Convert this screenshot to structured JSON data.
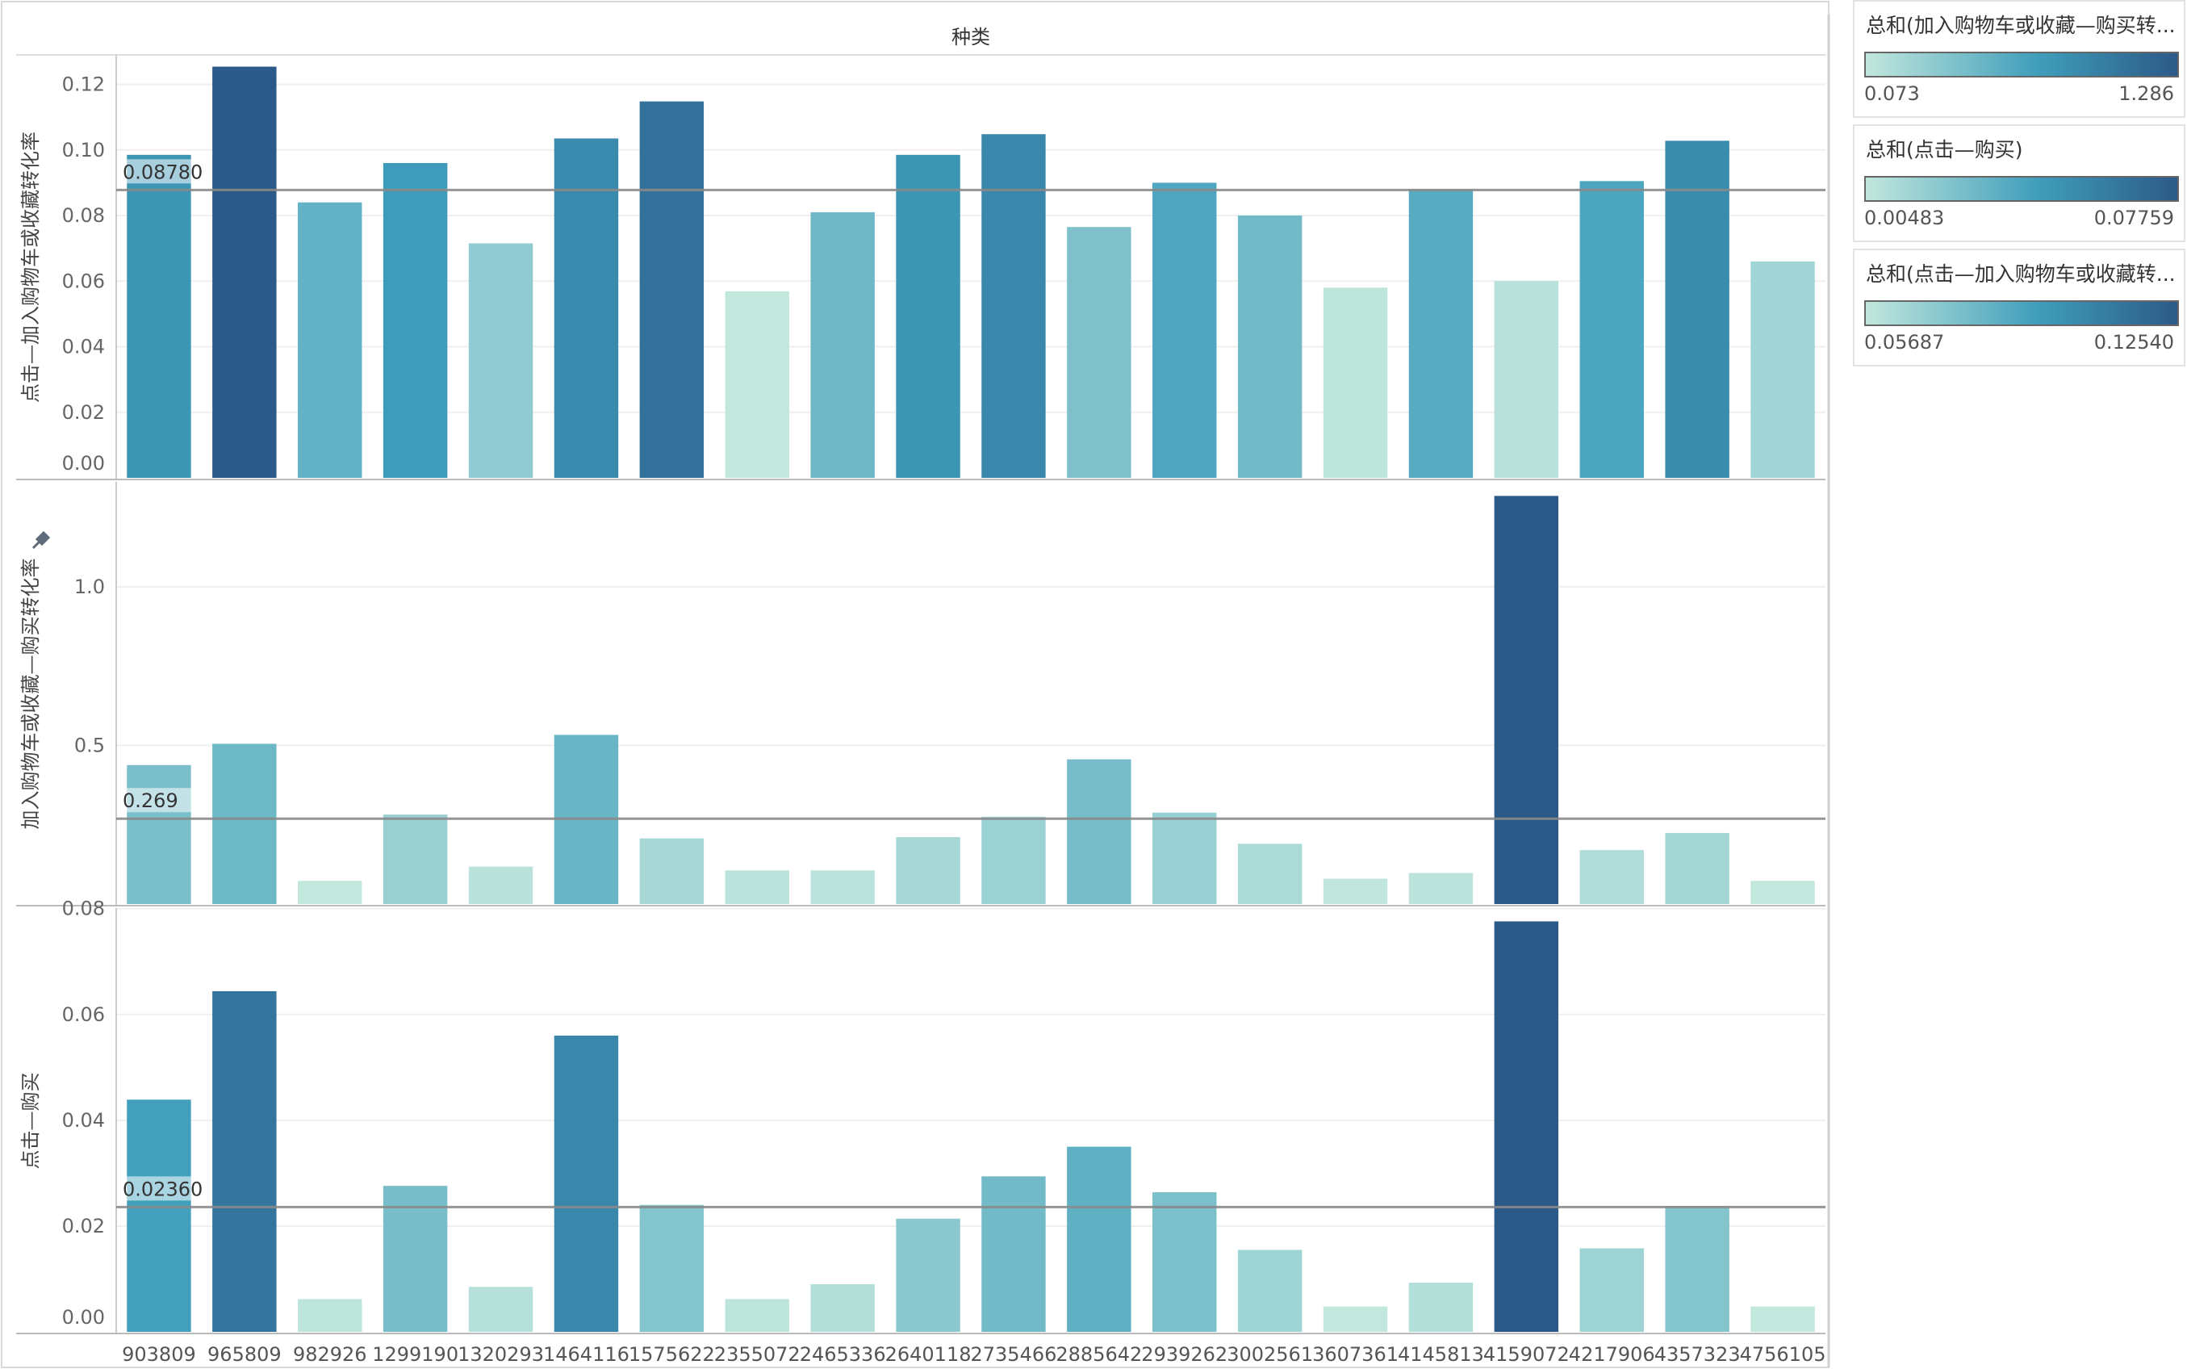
{
  "chart_data": {
    "type": "bar",
    "header": "种类",
    "categories": [
      "903809",
      "965809",
      "982926",
      "1299190",
      "1320293",
      "1464116",
      "1575622",
      "2355072",
      "2465336",
      "2640118",
      "2735466",
      "2885642",
      "2939262",
      "3002561",
      "3607361",
      "4145813",
      "4159072",
      "4217906",
      "4357323",
      "4756105"
    ],
    "panels": [
      {
        "ylabel": "点击—加入购物车或收藏转化率",
        "ylim": [
          0,
          0.128
        ],
        "ticks": [
          "0.00",
          "0.02",
          "0.04",
          "0.06",
          "0.08",
          "0.10",
          "0.12"
        ],
        "tick_values": [
          0,
          0.02,
          0.04,
          0.06,
          0.08,
          0.1,
          0.12
        ],
        "values": [
          0.0985,
          0.1254,
          0.084,
          0.096,
          0.0715,
          0.1035,
          0.1148,
          0.0569,
          0.081,
          0.0985,
          0.1048,
          0.0765,
          0.09,
          0.08,
          0.058,
          0.088,
          0.06,
          0.0905,
          0.1028,
          0.066
        ],
        "color_range": [
          0.05687,
          0.1254
        ],
        "reference_value": 0.0878,
        "reference_label": "0.08780"
      },
      {
        "ylabel": "加入购物车或收藏—购买转化率",
        "ylim": [
          0,
          1.32
        ],
        "ticks": [
          "0.5",
          "1.0"
        ],
        "tick_values": [
          0.5,
          1.0
        ],
        "values": [
          0.438,
          0.505,
          0.073,
          0.282,
          0.118,
          0.533,
          0.207,
          0.106,
          0.106,
          0.211,
          0.275,
          0.456,
          0.288,
          0.19,
          0.08,
          0.098,
          1.286,
          0.17,
          0.224,
          0.073
        ],
        "color_range": [
          0.073,
          1.286
        ],
        "reference_value": 0.269,
        "reference_label": "0.269"
      },
      {
        "ylabel": "点击—购买",
        "ylim": [
          0,
          0.0795
        ],
        "ticks": [
          "0.00",
          "0.02",
          "0.04",
          "0.06",
          "0.08"
        ],
        "tick_values": [
          0,
          0.02,
          0.04,
          0.06,
          0.08
        ],
        "values": [
          0.0439,
          0.0644,
          0.0062,
          0.0276,
          0.0085,
          0.056,
          0.024,
          0.0062,
          0.009,
          0.0214,
          0.0294,
          0.035,
          0.0264,
          0.0155,
          0.0048,
          0.0093,
          0.0776,
          0.0158,
          0.0238,
          0.0048
        ],
        "color_range": [
          0.00483,
          0.07759
        ],
        "reference_value": 0.0236,
        "reference_label": "0.02360"
      }
    ],
    "colors": {
      "low": "#c2e7dd",
      "mid": "#3f9ebb",
      "high": "#2c5a88"
    }
  },
  "legends": [
    {
      "title": "总和(加入购物车或收藏—购买转...",
      "min": "0.073",
      "max": "1.286"
    },
    {
      "title": "总和(点击—购买)",
      "min": "0.00483",
      "max": "0.07759"
    },
    {
      "title": "总和(点击—加入购物车或收藏转...",
      "min": "0.05687",
      "max": "0.12540"
    }
  ]
}
